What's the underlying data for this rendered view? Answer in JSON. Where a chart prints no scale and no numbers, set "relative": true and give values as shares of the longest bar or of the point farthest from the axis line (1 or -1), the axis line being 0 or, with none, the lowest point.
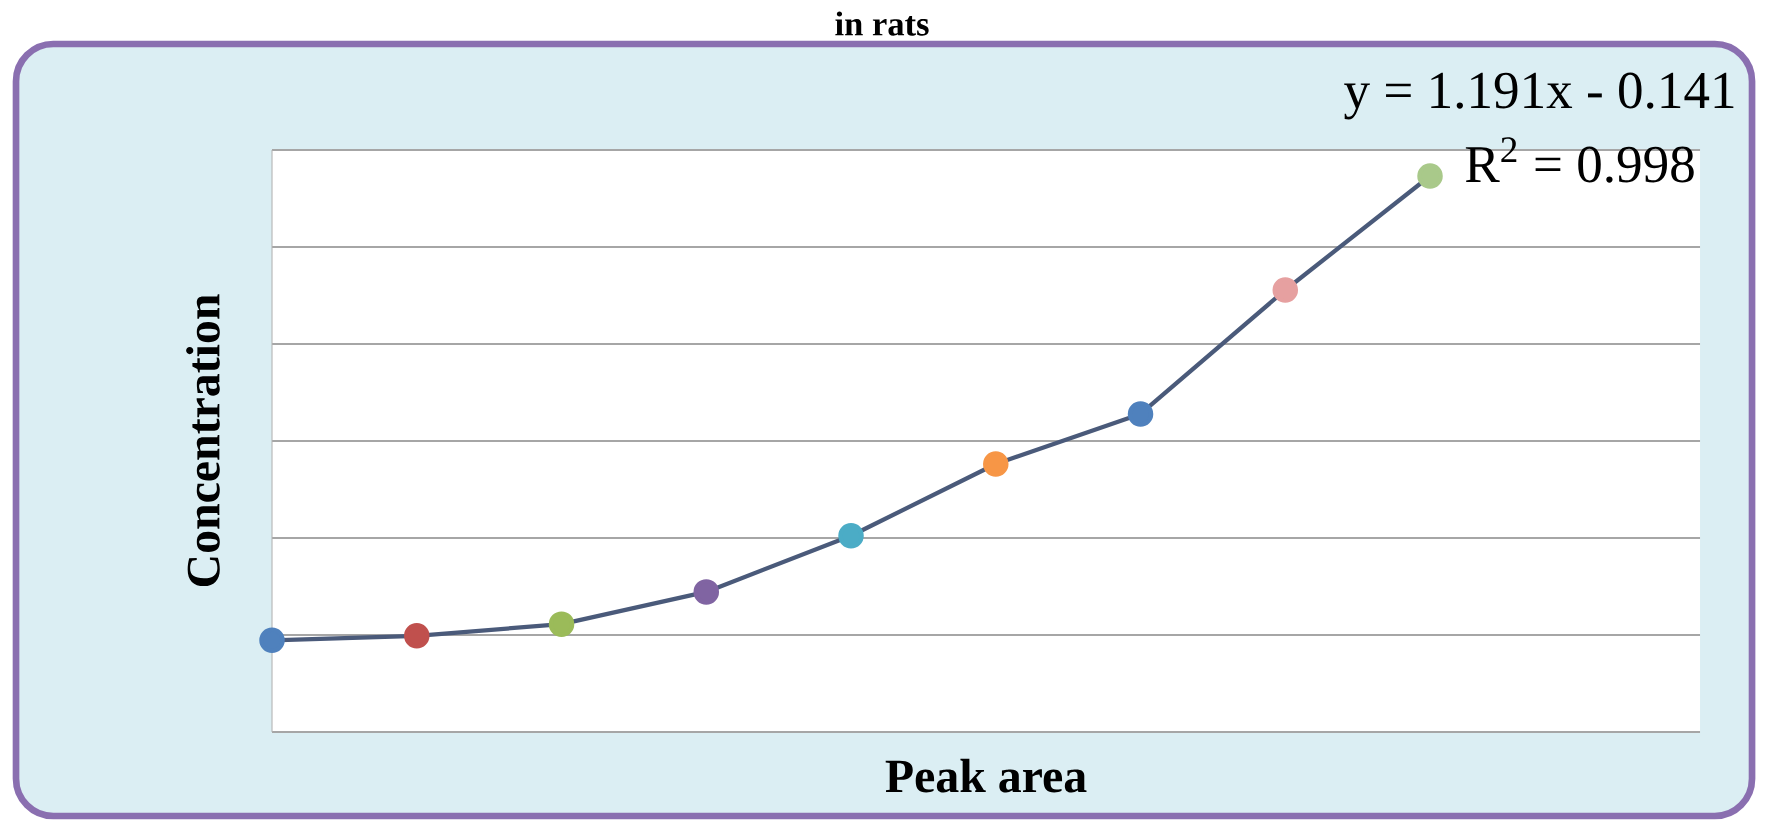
{
  "chart_data": {
    "type": "line",
    "title": "in rats",
    "xlabel": "Peak area",
    "ylabel": "Concentration",
    "relative": true,
    "categories": [
      null,
      null,
      null,
      null,
      null,
      null,
      null,
      null,
      null
    ],
    "series": [
      {
        "color": "#4a5a7a",
        "values": [
          0.165,
          0.173,
          0.194,
          0.252,
          0.353,
          0.482,
          0.572,
          0.795,
          1
        ],
        "colors": [
          "#4f81bd",
          "#c0504d",
          "#9bbb59",
          "#8064a2",
          "#4bacc6",
          "#f79646",
          "#4f81bd",
          "#e6a0a0",
          "#a9c98a"
        ]
      }
    ],
    "annotations": [
      "y = 1.191x - 0.141",
      "R$^{2}$ = 0.998"
    ],
    "grid": "y",
    "marker": "circle",
    "line_style": "solid"
  }
}
